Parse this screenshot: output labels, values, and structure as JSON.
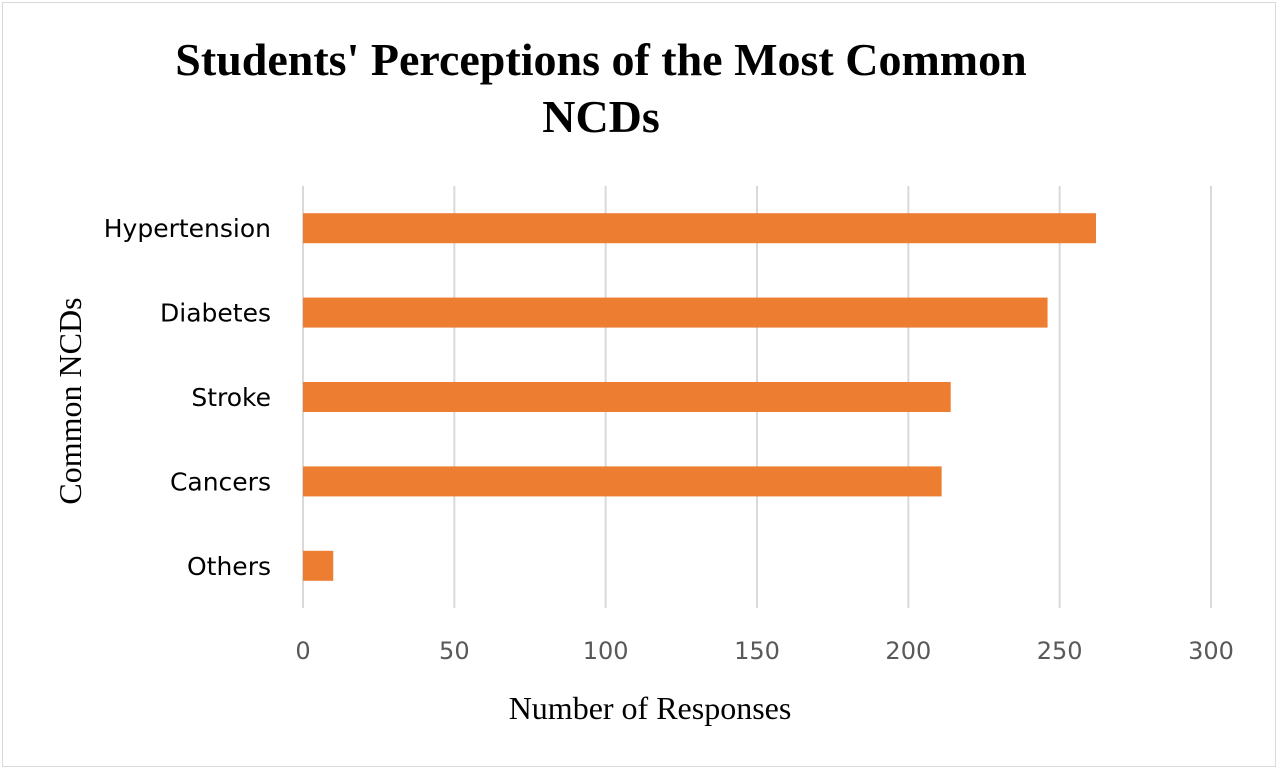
{
  "chart_data": {
    "type": "bar",
    "orientation": "horizontal",
    "title": "Students' Perceptions of the Most Common NCDs",
    "title_lines": [
      "Students' Perceptions of the Most Common",
      "NCDs"
    ],
    "xlabel": "Number of Responses",
    "ylabel": "Common NCDs",
    "categories": [
      "Hypertension",
      "Diabetes",
      "Stroke",
      "Cancers",
      "Others"
    ],
    "values": [
      262,
      246,
      214,
      211,
      10
    ],
    "xlim": [
      0,
      300
    ],
    "xticks": [
      0,
      50,
      100,
      150,
      200,
      250,
      300
    ],
    "grid": "vertical",
    "legend": "none",
    "bar_color": "#ED7D31"
  }
}
